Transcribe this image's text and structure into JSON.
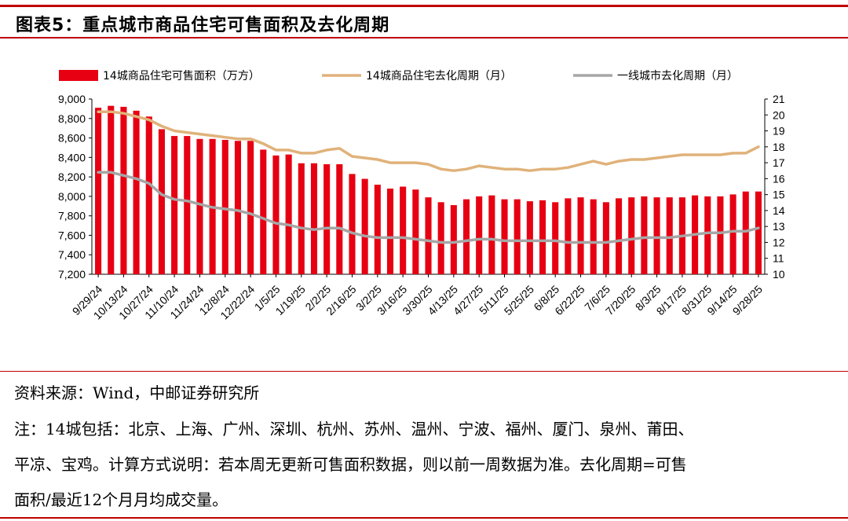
{
  "page_title": "图表5：重点城市商品住宅可售面积及去化周期",
  "source_text": "资料来源：Wind，中邮证券研究所",
  "note_lines": [
    "注：14城包括：北京、上海、广州、深圳、杭州、苏州、温州、宁波、福州、厦门、泉州、莆田、",
    "平凉、宝鸡。计算方式说明：若本周无更新可售面积数据，则以前一周数据为准。去化周期=可售",
    "面积/最近12个月月均成交量。"
  ],
  "colors": {
    "accent": "#c00000",
    "bar": "#e60012",
    "line_14": "#e0b27a",
    "line_tier1": "#a6a6a6"
  },
  "chart_data": {
    "type": "bar",
    "title": "",
    "y_left": {
      "min": 7200,
      "max": 9000,
      "step": 200,
      "tick_labels": [
        "7,200",
        "7,400",
        "7,600",
        "7,800",
        "8,000",
        "8,200",
        "8,400",
        "8,600",
        "8,800",
        "9,000"
      ]
    },
    "y_right": {
      "min": 10,
      "max": 21,
      "step": 1,
      "tick_labels": [
        "10",
        "11",
        "12",
        "13",
        "14",
        "15",
        "16",
        "17",
        "18",
        "19",
        "20",
        "21"
      ]
    },
    "x_tick_labels": [
      "9/29/24",
      "10/13/24",
      "10/27/24",
      "11/10/24",
      "11/24/24",
      "12/8/24",
      "12/22/24",
      "1/5/25",
      "1/19/25",
      "2/2/25",
      "2/16/25",
      "3/2/25",
      "3/16/25",
      "3/30/25",
      "4/13/25",
      "4/27/25",
      "5/11/25",
      "5/25/25",
      "6/8/25",
      "6/22/25",
      "7/6/25",
      "7/20/25",
      "8/3/25",
      "8/17/25",
      "8/31/25",
      "9/14/25",
      "9/28/25"
    ],
    "legend": [
      "14城商品住宅可售面积（万方）",
      "14城商品住宅去化周期（月）",
      "一线城市去化周期（月）"
    ],
    "legend_position": "top",
    "series": [
      {
        "name": "14城商品住宅可售面积（万方）",
        "type": "bar",
        "axis": "left",
        "values": [
          8910,
          8930,
          8920,
          8880,
          8820,
          8690,
          8620,
          8620,
          8590,
          8590,
          8580,
          8570,
          8570,
          8480,
          8420,
          8430,
          8340,
          8340,
          8330,
          8330,
          8230,
          8180,
          8120,
          8080,
          8100,
          8070,
          7990,
          7940,
          7910,
          7970,
          8000,
          8010,
          7970,
          7970,
          7950,
          7960,
          7940,
          7980,
          7990,
          7970,
          7940,
          7980,
          7990,
          8000,
          7990,
          7990,
          7990,
          8010,
          8000,
          8000,
          8020,
          8050,
          8050
        ]
      },
      {
        "name": "14城商品住宅去化周期（月）",
        "type": "line",
        "axis": "right",
        "values": [
          20.2,
          20.2,
          20.1,
          19.9,
          19.7,
          19.3,
          19.0,
          18.9,
          18.8,
          18.7,
          18.6,
          18.5,
          18.5,
          18.2,
          17.8,
          17.8,
          17.6,
          17.6,
          17.8,
          17.9,
          17.4,
          17.3,
          17.2,
          17.0,
          17.0,
          17.0,
          16.9,
          16.6,
          16.5,
          16.6,
          16.8,
          16.7,
          16.6,
          16.6,
          16.5,
          16.6,
          16.6,
          16.7,
          16.9,
          17.1,
          16.9,
          17.1,
          17.2,
          17.2,
          17.3,
          17.4,
          17.5,
          17.5,
          17.5,
          17.5,
          17.6,
          17.6,
          18.0
        ]
      },
      {
        "name": "一线城市去化周期（月）",
        "type": "line",
        "axis": "right",
        "values": [
          16.4,
          16.4,
          16.2,
          16.0,
          15.7,
          15.0,
          14.7,
          14.6,
          14.4,
          14.2,
          14.1,
          14.0,
          13.8,
          13.5,
          13.2,
          13.1,
          12.9,
          12.8,
          12.9,
          12.9,
          12.6,
          12.4,
          12.3,
          12.3,
          12.3,
          12.2,
          12.1,
          12.0,
          12.0,
          12.1,
          12.2,
          12.2,
          12.1,
          12.1,
          12.1,
          12.1,
          12.1,
          12.0,
          12.0,
          12.0,
          12.0,
          12.1,
          12.2,
          12.3,
          12.3,
          12.3,
          12.4,
          12.5,
          12.6,
          12.6,
          12.7,
          12.7,
          12.9
        ]
      }
    ]
  }
}
